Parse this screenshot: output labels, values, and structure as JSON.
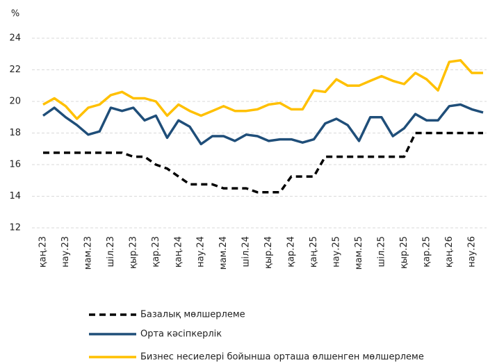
{
  "chart_data": {
    "type": "line",
    "y_label": "%",
    "categories": [
      "қаң.23",
      null,
      "нау.23",
      null,
      "мам.23",
      null,
      "шіл.23",
      null,
      "қыр.23",
      null,
      "қар.23",
      null,
      "қаң.24",
      null,
      "нау.24",
      null,
      "мам.24",
      null,
      "шіл.24",
      null,
      "қыр.24",
      null,
      "қар.24",
      null,
      "қаң.25",
      null,
      "нау.25",
      null,
      "мам.25",
      null,
      "шіл.25",
      null,
      "қыр.25",
      null,
      "қар.25",
      null,
      "қаң.26",
      null,
      "нау.26",
      null
    ],
    "series": [
      {
        "name": "Базалық мөлшерлеме",
        "color": "#000000",
        "dashed": true,
        "values": [
          16.75,
          16.75,
          16.75,
          16.75,
          16.75,
          16.75,
          16.75,
          16.75,
          16.5,
          16.5,
          16.0,
          15.75,
          15.25,
          14.75,
          14.75,
          14.75,
          14.5,
          14.5,
          14.5,
          14.25,
          14.25,
          14.25,
          15.25,
          15.25,
          15.25,
          16.5,
          16.5,
          16.5,
          16.5,
          16.5,
          16.5,
          16.5,
          16.5,
          18,
          18,
          18,
          18,
          18,
          18,
          18
        ]
      },
      {
        "name": "Орта кәсіпкерлік",
        "color": "#1f4e79",
        "dashed": false,
        "values": [
          19.1,
          19.6,
          19.0,
          18.5,
          17.9,
          18.1,
          19.6,
          19.4,
          19.6,
          18.8,
          19.1,
          17.7,
          18.8,
          18.4,
          17.3,
          17.8,
          17.8,
          17.5,
          17.9,
          17.8,
          17.5,
          17.6,
          17.6,
          17.4,
          17.6,
          18.6,
          18.9,
          18.5,
          17.5,
          19.0,
          19.0,
          17.8,
          18.3,
          19.2,
          18.8,
          18.8,
          19.7,
          19.8,
          19.5,
          19.3
        ]
      },
      {
        "name": "Бизнес несиелері бойынша орташа өлшенген мөлшерлеме",
        "color": "#ffc000",
        "dashed": false,
        "values": [
          19.8,
          20.2,
          19.7,
          18.9,
          19.6,
          19.8,
          20.4,
          20.6,
          20.2,
          20.2,
          20.0,
          19.1,
          19.8,
          19.4,
          19.1,
          19.4,
          19.7,
          19.4,
          19.4,
          19.5,
          19.8,
          19.9,
          19.5,
          19.5,
          20.7,
          20.6,
          21.4,
          21.0,
          21.0,
          21.3,
          21.6,
          21.3,
          21.1,
          21.8,
          21.4,
          20.7,
          22.5,
          22.6,
          21.8,
          21.8
        ]
      }
    ],
    "ylim": [
      12,
      24
    ],
    "yticks": [
      12,
      14,
      16,
      18,
      20,
      22,
      24
    ],
    "grid": true
  }
}
